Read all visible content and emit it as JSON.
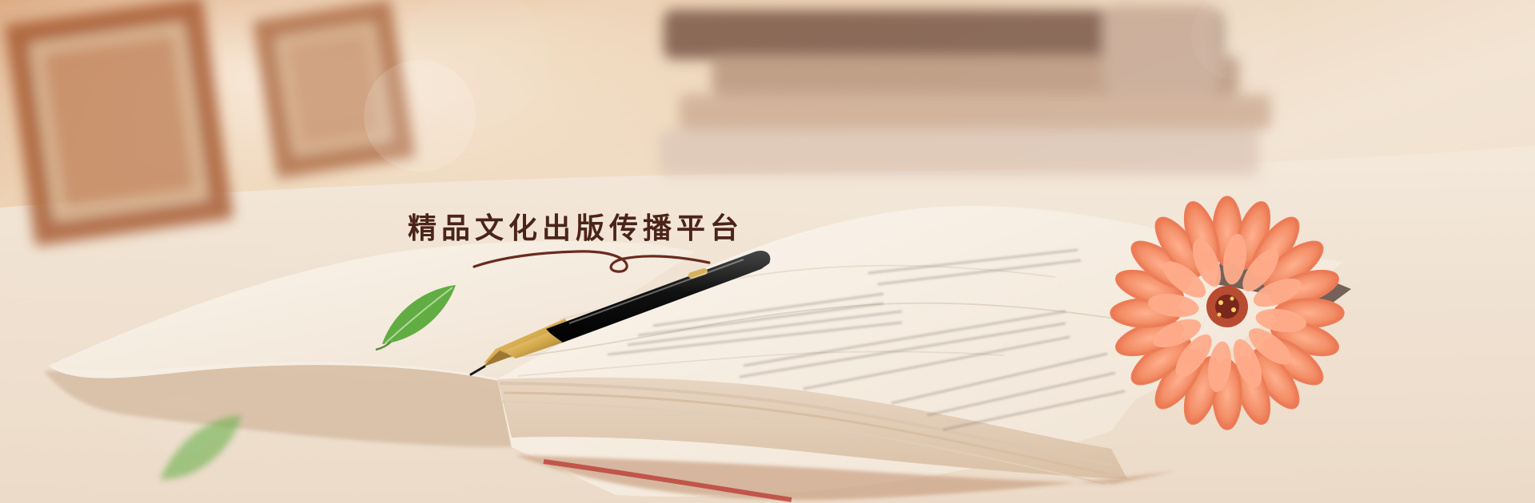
{
  "banner": {
    "tagline": "精品文化出版传播平台"
  },
  "colors": {
    "tagline": "#4b2418",
    "flourish": "#6a2b1f",
    "background": "#efe1cf",
    "flower": "#f38f68",
    "leaf": "#61ad43",
    "pen": "#111111",
    "gold": "#d5aa4d"
  },
  "icons": [
    "blurred-books",
    "picture-frames",
    "open-book",
    "fountain-pen",
    "green-leaf",
    "coral-gerbera-flower",
    "bokeh-lights"
  ]
}
